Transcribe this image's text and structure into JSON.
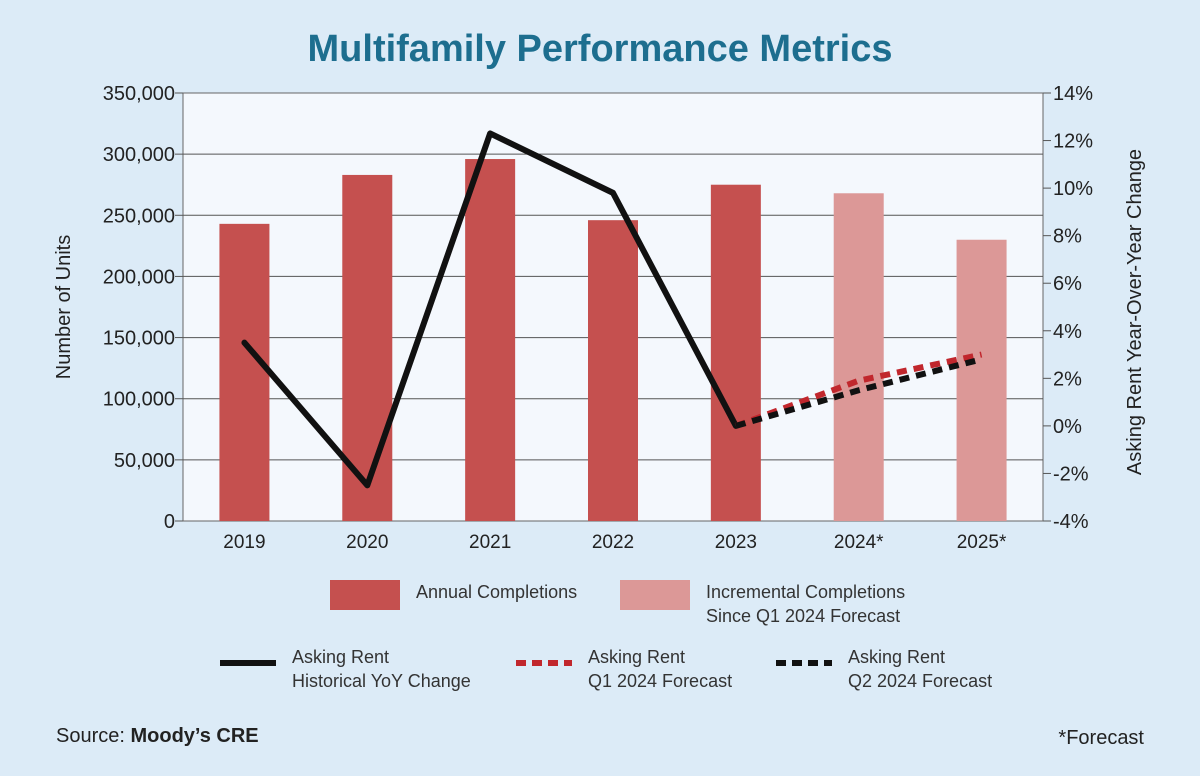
{
  "chart_data": {
    "type": "bar",
    "title": "Multifamily Performance Metrics",
    "categories": [
      "2019",
      "2020",
      "2021",
      "2022",
      "2023",
      "2024*",
      "2025*"
    ],
    "ylabel": "Number of Units",
    "ylabel_right": "Asking Rent Year-Over-Year Change",
    "ylim": [
      0,
      350000
    ],
    "ylim_right": [
      -4,
      14
    ],
    "yticks": [
      "0",
      "50,000",
      "100,000",
      "150,000",
      "200,000",
      "250,000",
      "300,000",
      "350,000"
    ],
    "yticks_right": [
      "-4%",
      "-2%",
      "0%",
      "2%",
      "4%",
      "6%",
      "8%",
      "10%",
      "12%",
      "14%"
    ],
    "grid": true,
    "series": [
      {
        "name": "Annual Completions",
        "kind": "bar",
        "color": "#c5504f",
        "values": [
          243000,
          283000,
          296000,
          246000,
          275000,
          null,
          null
        ]
      },
      {
        "name": "Incremental Completions Since Q1 2024 Forecast",
        "kind": "bar",
        "color": "#dc9897",
        "values": [
          null,
          null,
          null,
          null,
          null,
          268000,
          230000
        ]
      },
      {
        "name": "Asking Rent Historical YoY Change",
        "kind": "line",
        "axis": "right",
        "color": "#111111",
        "style": "solid",
        "values": [
          3.5,
          -2.5,
          12.3,
          9.8,
          0.0,
          null,
          null
        ]
      },
      {
        "name": "Asking Rent Q1 2024 Forecast",
        "kind": "line",
        "axis": "right",
        "color": "#c1272d",
        "style": "dashed",
        "values": [
          null,
          null,
          null,
          null,
          0.0,
          1.9,
          3.0
        ]
      },
      {
        "name": "Asking Rent Q2 2024 Forecast",
        "kind": "line",
        "axis": "right",
        "color": "#111111",
        "style": "dashed",
        "values": [
          null,
          null,
          null,
          null,
          0.0,
          1.5,
          2.8
        ]
      }
    ]
  },
  "legend": {
    "annual": "Annual Completions",
    "incremental_1": "Incremental Completions",
    "incremental_2": "Since Q1 2024 Forecast",
    "hist_1": "Asking Rent",
    "hist_2": "Historical YoY Change",
    "q1_1": "Asking Rent",
    "q1_2": "Q1 2024 Forecast",
    "q2_1": "Asking Rent",
    "q2_2": "Q2 2024 Forecast"
  },
  "source_label": "Source: ",
  "source_name": "Moody’s CRE",
  "footnote": "*Forecast"
}
